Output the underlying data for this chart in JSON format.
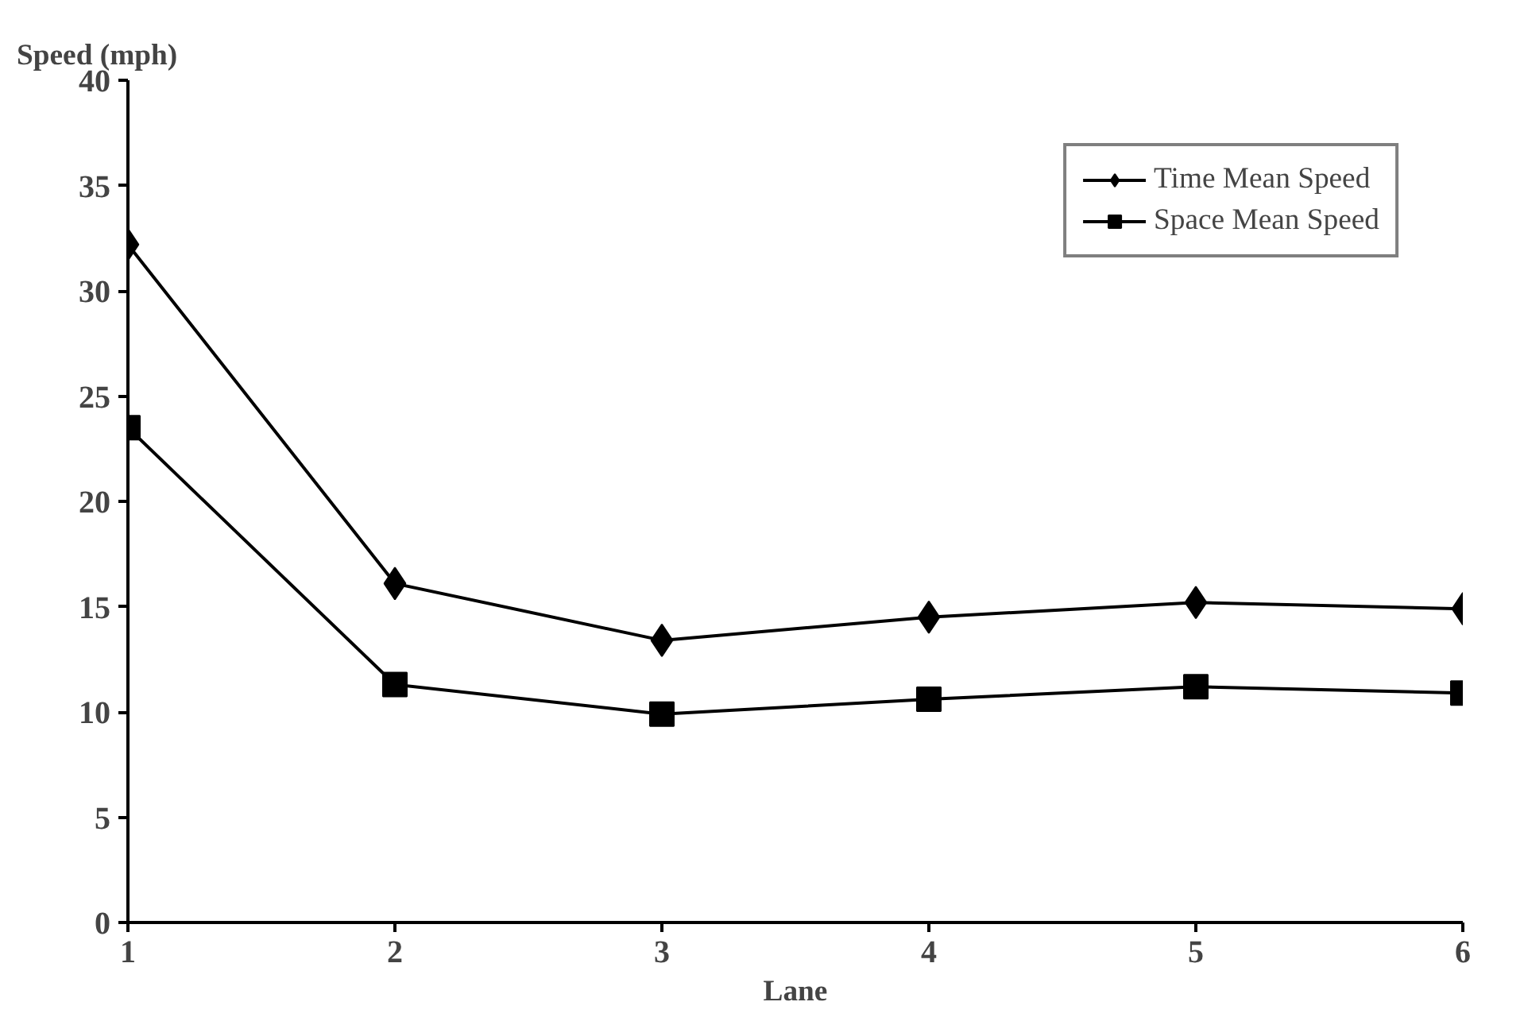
{
  "chart_data": {
    "type": "line",
    "xlabel": "Lane",
    "ylabel": "Speed (mph)",
    "x": [
      1,
      2,
      3,
      4,
      5,
      6
    ],
    "xlim": [
      1,
      6
    ],
    "xticks": [
      1,
      2,
      3,
      4,
      5,
      6
    ],
    "ylim": [
      0,
      40
    ],
    "yticks": [
      0,
      5,
      10,
      15,
      20,
      25,
      30,
      35,
      40
    ],
    "series": [
      {
        "name": "Time Mean Speed",
        "color": "#000000",
        "marker": "diamond",
        "values": [
          32.2,
          16.1,
          13.4,
          14.5,
          15.2,
          14.9
        ]
      },
      {
        "name": "Space Mean Speed",
        "color": "#000000",
        "marker": "square",
        "values": [
          23.5,
          11.3,
          9.9,
          10.6,
          11.2,
          10.9
        ]
      }
    ],
    "grid": false,
    "legend": "top right",
    "line_style": "solid"
  }
}
